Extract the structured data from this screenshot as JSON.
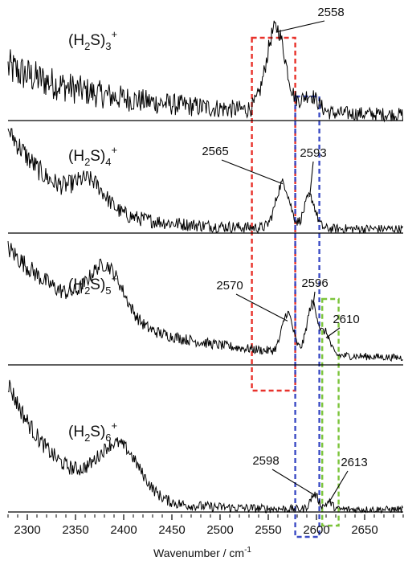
{
  "chart_data": {
    "type": "line",
    "xlabel": "Wavenumber / cm",
    "xlabel_exp": "-1",
    "xlim": [
      2280,
      2690
    ],
    "x_ticks": [
      2300,
      2350,
      2400,
      2450,
      2500,
      2550,
      2600,
      2650
    ],
    "x_tick_labels": [
      "2300",
      "2350",
      "2400",
      "2450",
      "2500",
      "2550",
      "2600",
      "2650"
    ],
    "series": [
      {
        "name": "(H2S)3+",
        "label": {
          "main": "(H",
          "sub1": "2",
          "mid": "S)",
          "sub2": "3",
          "sup": "+"
        },
        "shape": {
          "start": 0.55,
          "decay": 120,
          "floor": 0.05,
          "noise": 0.22,
          "bumps": [],
          "peaks": [
            [
              2558,
              0.95,
              14
            ],
            [
              2593,
              0.2,
              12
            ]
          ]
        },
        "peak_labels": [
          {
            "text": "2558",
            "x": 2558
          }
        ]
      },
      {
        "name": "(H2S)4+",
        "label": {
          "main": "(H",
          "sub1": "2",
          "mid": "S)",
          "sub2": "4",
          "sup": "+"
        },
        "shape": {
          "start": 1.0,
          "decay": 60,
          "floor": 0.04,
          "noise": 0.12,
          "bumps": [
            [
              2365,
              0.25,
              22
            ]
          ],
          "peaks": [
            [
              2565,
              0.45,
              10
            ],
            [
              2593,
              0.32,
              8
            ]
          ]
        },
        "peak_labels": [
          {
            "text": "2565",
            "x": 2565
          },
          {
            "text": "2593",
            "x": 2593
          }
        ]
      },
      {
        "name": "(H2S)5+",
        "label": {
          "main": "(H",
          "sub1": "2",
          "mid": "S)",
          "sub2": "5",
          "sup": "+"
        },
        "shape": {
          "start": 1.0,
          "decay": 110,
          "floor": 0.04,
          "noise": 0.09,
          "bumps": [
            [
              2382,
              0.45,
              25
            ]
          ],
          "peaks": [
            [
              2570,
              0.35,
              8
            ],
            [
              2596,
              0.45,
              8
            ],
            [
              2610,
              0.18,
              6
            ]
          ]
        },
        "peak_labels": [
          {
            "text": "2570",
            "x": 2570
          },
          {
            "text": "2596",
            "x": 2596
          },
          {
            "text": "2610",
            "x": 2610
          }
        ]
      },
      {
        "name": "(H2S)6+",
        "label": {
          "main": "(H",
          "sub1": "2",
          "mid": "S)",
          "sub2": "6",
          "sup": "+"
        },
        "shape": {
          "start": 1.05,
          "decay": 55,
          "floor": 0.02,
          "noise": 0.08,
          "bumps": [
            [
              2395,
              0.42,
              30
            ]
          ],
          "peaks": [
            [
              2598,
              0.12,
              6
            ],
            [
              2613,
              0.06,
              5
            ]
          ]
        },
        "peak_labels": [
          {
            "text": "2598",
            "x": 2598
          },
          {
            "text": "2613",
            "x": 2613
          }
        ]
      }
    ],
    "regions": [
      {
        "name": "red-region",
        "color": "#e8322b",
        "x_range": [
          2533,
          2578
        ],
        "panels": [
          0,
          2
        ]
      },
      {
        "name": "blue-region",
        "color": "#3b4bc4",
        "x_range": [
          2578,
          2603
        ],
        "panels": [
          0,
          3
        ]
      },
      {
        "name": "green-region",
        "color": "#7cc43b",
        "x_range": [
          2606,
          2623
        ],
        "panels": [
          2,
          3
        ]
      }
    ]
  }
}
